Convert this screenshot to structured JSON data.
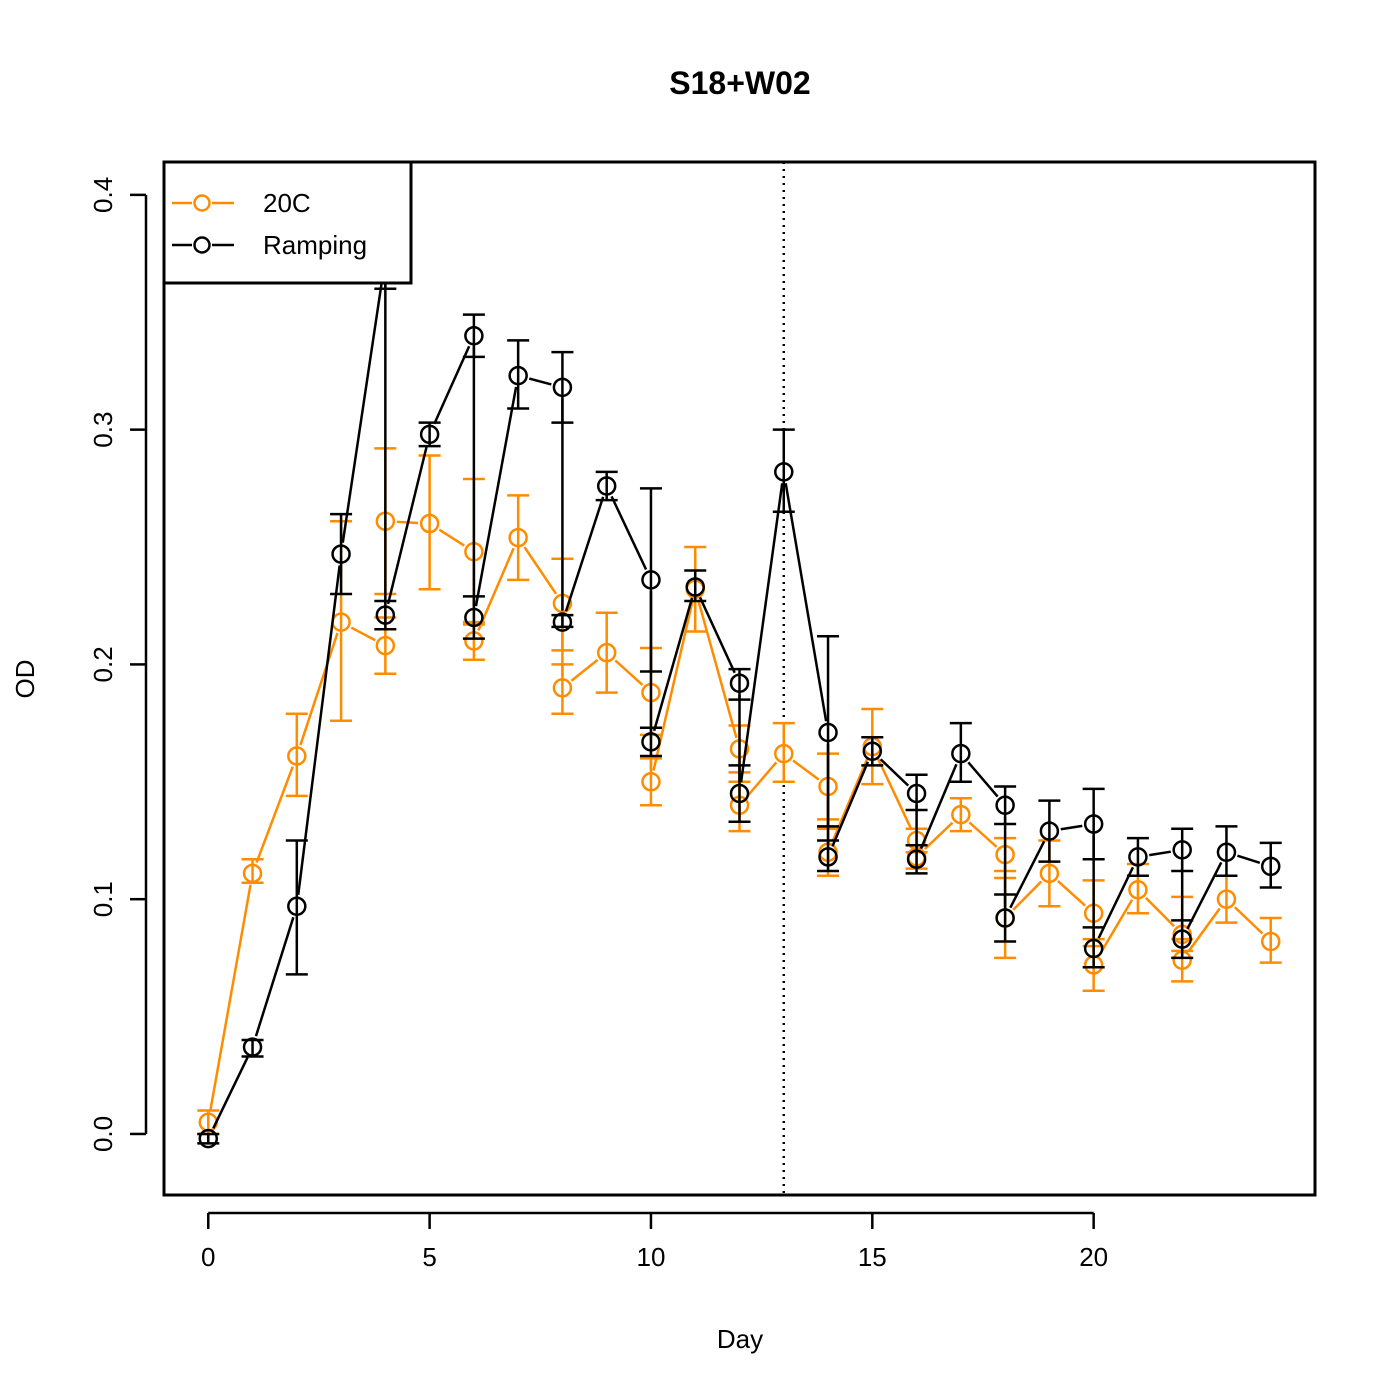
{
  "chart_data": {
    "type": "line",
    "title": "S18+W02",
    "xlabel": "Day",
    "ylabel": "OD",
    "xlim": [
      -1,
      25
    ],
    "ylim": [
      -0.026,
      0.414
    ],
    "xticks": [
      0,
      5,
      10,
      15,
      20
    ],
    "yticks": [
      0.0,
      0.1,
      0.2,
      0.3,
      0.4
    ],
    "xtick_labels": [
      "0",
      "5",
      "10",
      "15",
      "20"
    ],
    "ytick_labels": [
      "0.0",
      "0.1",
      "0.2",
      "0.3",
      "0.4"
    ],
    "grid": false,
    "legend_position": "top-left",
    "vline": {
      "x": 13,
      "style": "dotted"
    },
    "series": [
      {
        "name": "20C",
        "color": "#ff8c00",
        "points": [
          {
            "x": 0,
            "y": 0.005,
            "lo": 0.0,
            "hi": 0.01
          },
          {
            "x": 1,
            "y": 0.111,
            "lo": 0.107,
            "hi": 0.117
          },
          {
            "x": 2,
            "y": 0.161,
            "lo": 0.144,
            "hi": 0.179
          },
          {
            "x": 3,
            "y": 0.218,
            "lo": 0.176,
            "hi": 0.261
          },
          {
            "x": 4,
            "y": 0.208,
            "lo": 0.196,
            "hi": 0.22
          },
          {
            "x": 4,
            "y": 0.261,
            "lo": 0.23,
            "hi": 0.292
          },
          {
            "x": 5,
            "y": 0.26,
            "lo": 0.232,
            "hi": 0.289
          },
          {
            "x": 6,
            "y": 0.248,
            "lo": 0.217,
            "hi": 0.279
          },
          {
            "x": 6,
            "y": 0.21,
            "lo": 0.202,
            "hi": 0.218
          },
          {
            "x": 7,
            "y": 0.254,
            "lo": 0.236,
            "hi": 0.272
          },
          {
            "x": 8,
            "y": 0.226,
            "lo": 0.206,
            "hi": 0.245
          },
          {
            "x": 8,
            "y": 0.19,
            "lo": 0.179,
            "hi": 0.2
          },
          {
            "x": 9,
            "y": 0.205,
            "lo": 0.188,
            "hi": 0.222
          },
          {
            "x": 10,
            "y": 0.188,
            "lo": 0.17,
            "hi": 0.207
          },
          {
            "x": 10,
            "y": 0.15,
            "lo": 0.14,
            "hi": 0.16
          },
          {
            "x": 11,
            "y": 0.232,
            "lo": 0.214,
            "hi": 0.25
          },
          {
            "x": 12,
            "y": 0.164,
            "lo": 0.154,
            "hi": 0.174
          },
          {
            "x": 12,
            "y": 0.14,
            "lo": 0.129,
            "hi": 0.15
          },
          {
            "x": 13,
            "y": 0.162,
            "lo": 0.15,
            "hi": 0.175
          },
          {
            "x": 14,
            "y": 0.148,
            "lo": 0.134,
            "hi": 0.162
          },
          {
            "x": 14,
            "y": 0.12,
            "lo": 0.11,
            "hi": 0.13
          },
          {
            "x": 15,
            "y": 0.165,
            "lo": 0.149,
            "hi": 0.181
          },
          {
            "x": 16,
            "y": 0.125,
            "lo": 0.12,
            "hi": 0.13
          },
          {
            "x": 16,
            "y": 0.118,
            "lo": 0.113,
            "hi": 0.123
          },
          {
            "x": 17,
            "y": 0.136,
            "lo": 0.129,
            "hi": 0.143
          },
          {
            "x": 18,
            "y": 0.119,
            "lo": 0.112,
            "hi": 0.126
          },
          {
            "x": 18,
            "y": 0.092,
            "lo": 0.075,
            "hi": 0.109
          },
          {
            "x": 19,
            "y": 0.111,
            "lo": 0.097,
            "hi": 0.125
          },
          {
            "x": 20,
            "y": 0.094,
            "lo": 0.08,
            "hi": 0.108
          },
          {
            "x": 20,
            "y": 0.072,
            "lo": 0.061,
            "hi": 0.083
          },
          {
            "x": 21,
            "y": 0.104,
            "lo": 0.094,
            "hi": 0.115
          },
          {
            "x": 22,
            "y": 0.085,
            "lo": 0.078,
            "hi": 0.101
          },
          {
            "x": 22,
            "y": 0.074,
            "lo": 0.065,
            "hi": 0.083
          },
          {
            "x": 23,
            "y": 0.1,
            "lo": 0.09,
            "hi": 0.11
          },
          {
            "x": 24,
            "y": 0.082,
            "lo": 0.073,
            "hi": 0.092
          }
        ]
      },
      {
        "name": "Ramping",
        "color": "#000000",
        "points": [
          {
            "x": 0,
            "y": -0.002,
            "lo": -0.004,
            "hi": 0.0
          },
          {
            "x": 1,
            "y": 0.037,
            "lo": 0.033,
            "hi": 0.04
          },
          {
            "x": 2,
            "y": 0.097,
            "lo": 0.068,
            "hi": 0.125
          },
          {
            "x": 3,
            "y": 0.247,
            "lo": 0.23,
            "hi": 0.264
          },
          {
            "x": 4,
            "y": 0.373,
            "lo": 0.36,
            "hi": 0.386
          },
          {
            "x": 4,
            "y": 0.221,
            "lo": 0.215,
            "hi": 0.227
          },
          {
            "x": 5,
            "y": 0.298,
            "lo": 0.293,
            "hi": 0.303
          },
          {
            "x": 6,
            "y": 0.34,
            "lo": 0.331,
            "hi": 0.349
          },
          {
            "x": 6,
            "y": 0.22,
            "lo": 0.211,
            "hi": 0.229
          },
          {
            "x": 7,
            "y": 0.323,
            "lo": 0.309,
            "hi": 0.338
          },
          {
            "x": 8,
            "y": 0.318,
            "lo": 0.303,
            "hi": 0.333
          },
          {
            "x": 8,
            "y": 0.218,
            "lo": 0.216,
            "hi": 0.221
          },
          {
            "x": 9,
            "y": 0.276,
            "lo": 0.27,
            "hi": 0.282
          },
          {
            "x": 10,
            "y": 0.236,
            "lo": 0.197,
            "hi": 0.275
          },
          {
            "x": 10,
            "y": 0.167,
            "lo": 0.161,
            "hi": 0.173
          },
          {
            "x": 11,
            "y": 0.233,
            "lo": 0.227,
            "hi": 0.24
          },
          {
            "x": 12,
            "y": 0.192,
            "lo": 0.185,
            "hi": 0.198
          },
          {
            "x": 12,
            "y": 0.145,
            "lo": 0.133,
            "hi": 0.157
          },
          {
            "x": 13,
            "y": 0.282,
            "lo": 0.265,
            "hi": 0.3
          },
          {
            "x": 14,
            "y": 0.171,
            "lo": 0.131,
            "hi": 0.212
          },
          {
            "x": 14,
            "y": 0.118,
            "lo": 0.112,
            "hi": 0.125
          },
          {
            "x": 15,
            "y": 0.163,
            "lo": 0.157,
            "hi": 0.169
          },
          {
            "x": 16,
            "y": 0.145,
            "lo": 0.138,
            "hi": 0.153
          },
          {
            "x": 16,
            "y": 0.117,
            "lo": 0.111,
            "hi": 0.123
          },
          {
            "x": 17,
            "y": 0.162,
            "lo": 0.15,
            "hi": 0.175
          },
          {
            "x": 18,
            "y": 0.14,
            "lo": 0.132,
            "hi": 0.148
          },
          {
            "x": 18,
            "y": 0.092,
            "lo": 0.082,
            "hi": 0.102
          },
          {
            "x": 19,
            "y": 0.129,
            "lo": 0.116,
            "hi": 0.142
          },
          {
            "x": 20,
            "y": 0.132,
            "lo": 0.117,
            "hi": 0.147
          },
          {
            "x": 20,
            "y": 0.079,
            "lo": 0.071,
            "hi": 0.088
          },
          {
            "x": 21,
            "y": 0.118,
            "lo": 0.11,
            "hi": 0.126
          },
          {
            "x": 22,
            "y": 0.121,
            "lo": 0.112,
            "hi": 0.13
          },
          {
            "x": 22,
            "y": 0.083,
            "lo": 0.075,
            "hi": 0.091
          },
          {
            "x": 23,
            "y": 0.12,
            "lo": 0.11,
            "hi": 0.131
          },
          {
            "x": 24,
            "y": 0.114,
            "lo": 0.105,
            "hi": 0.124
          }
        ]
      }
    ]
  }
}
